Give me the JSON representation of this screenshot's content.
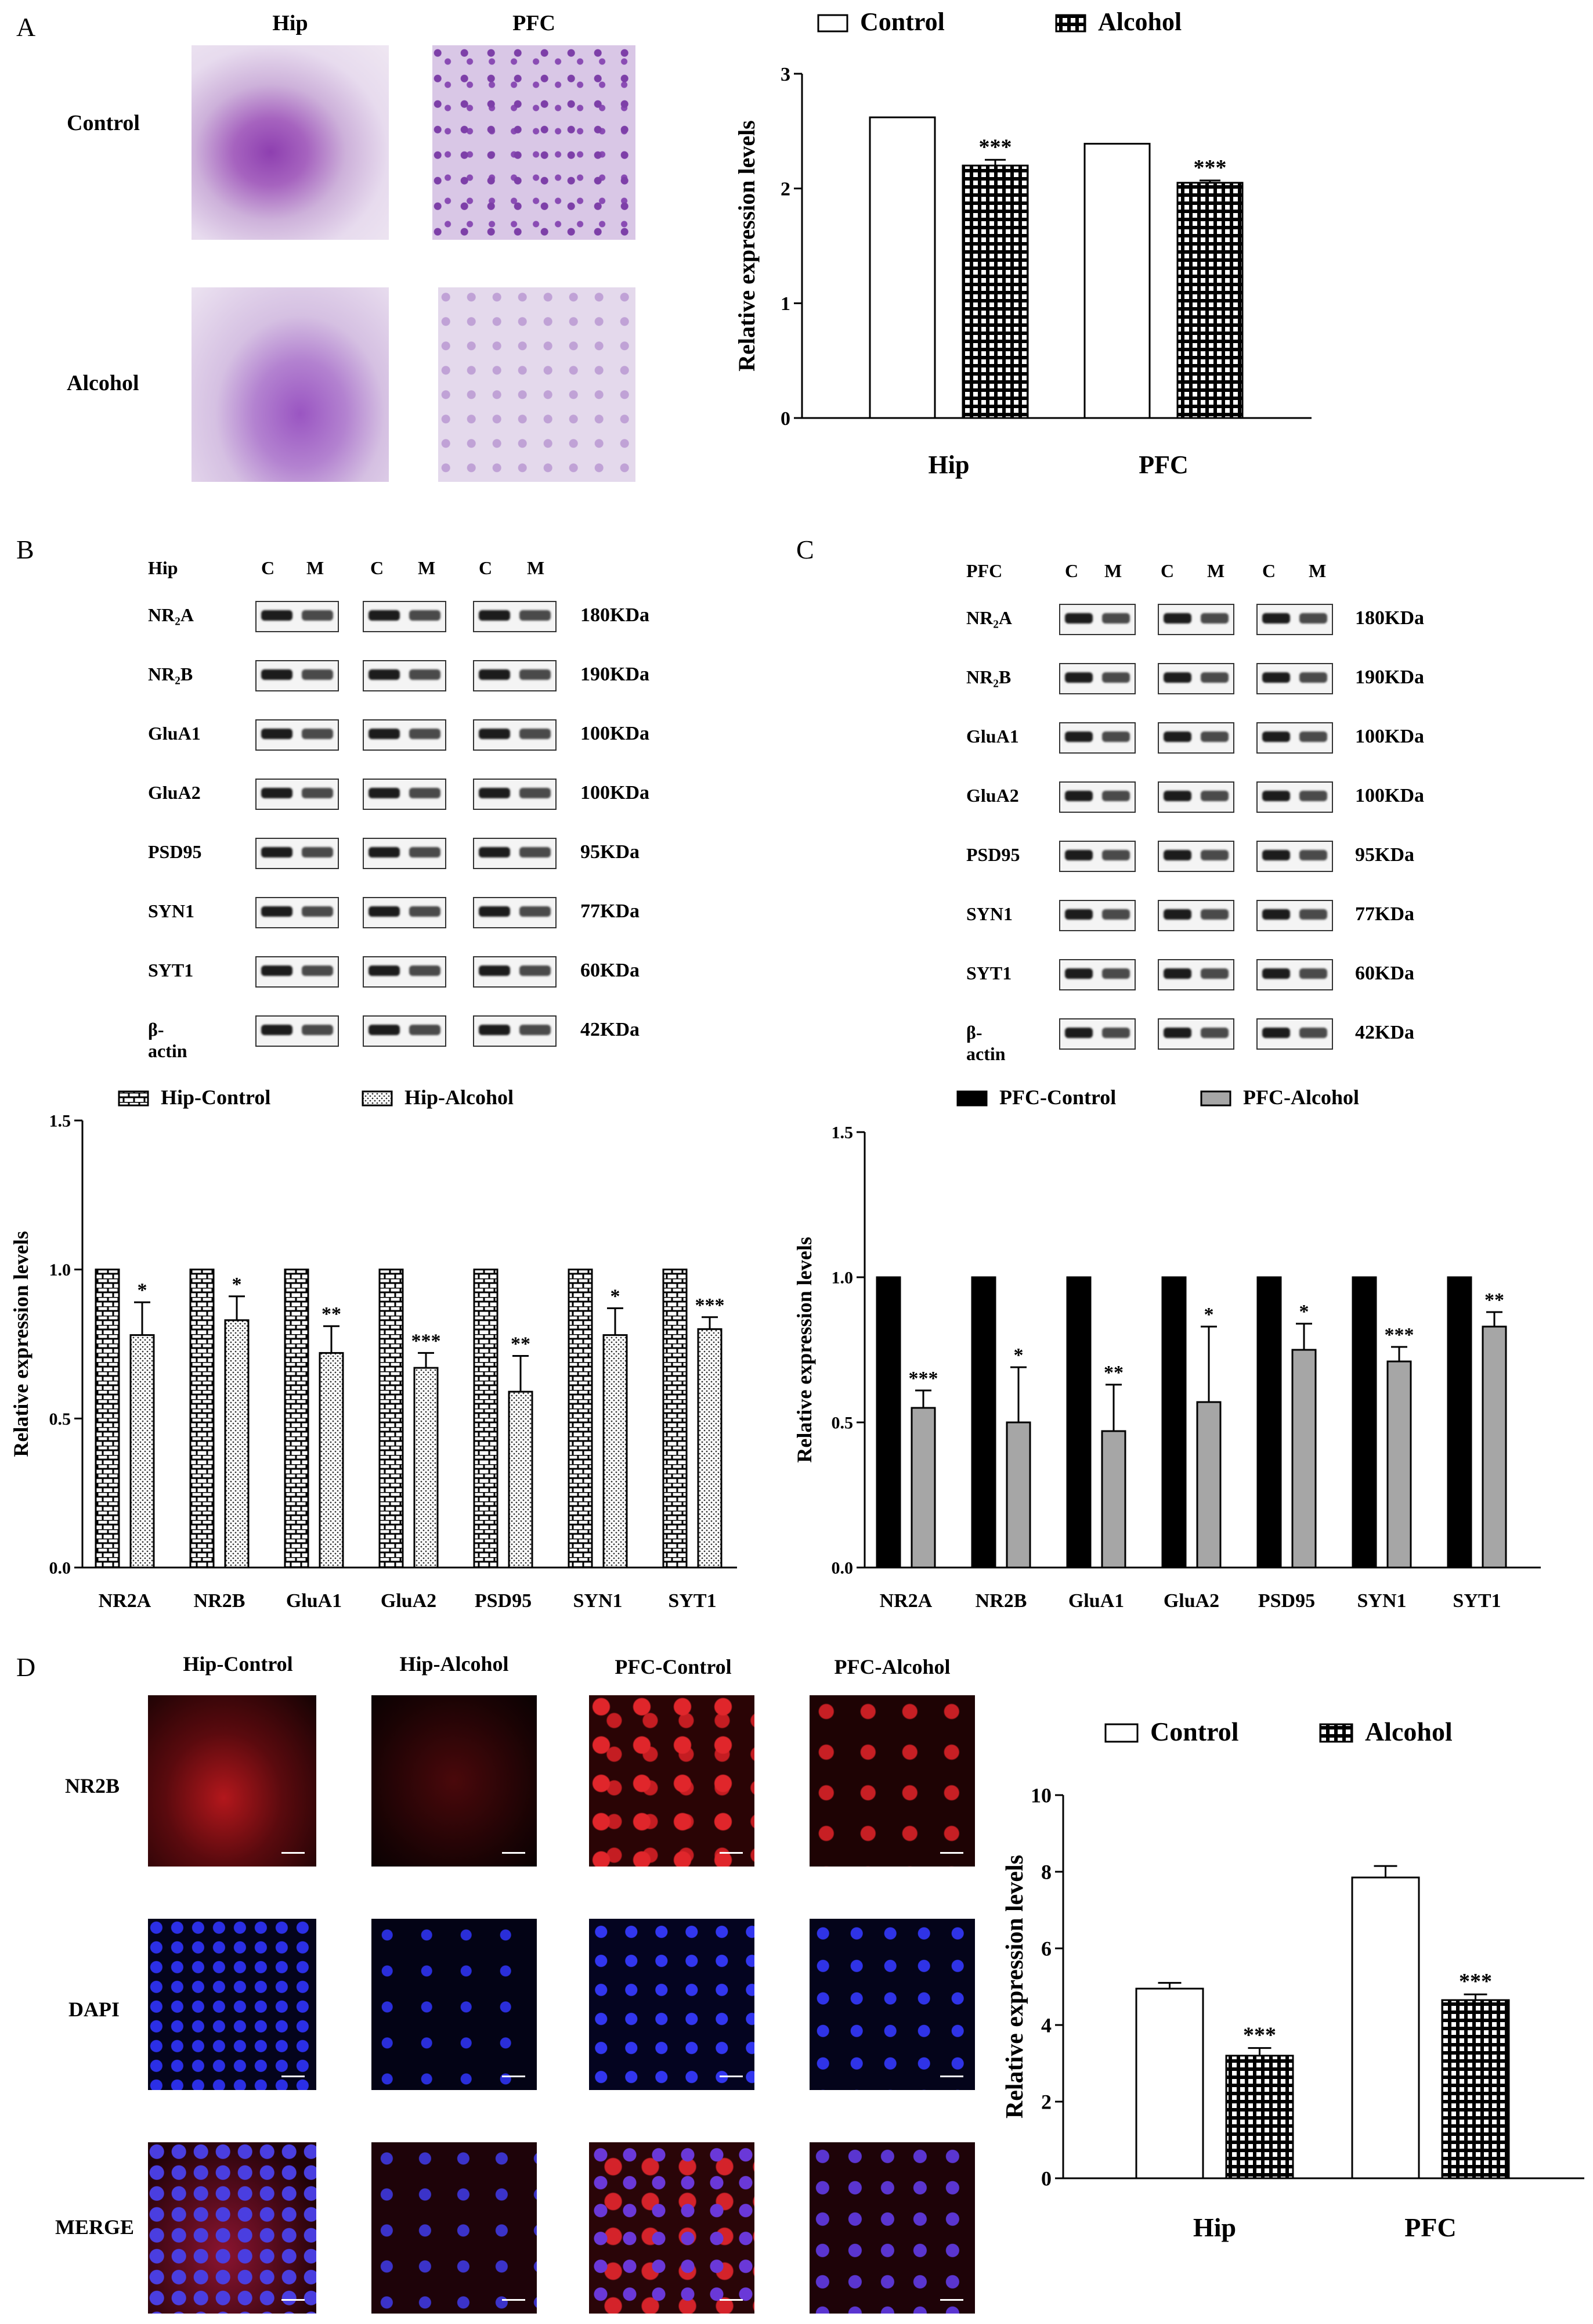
{
  "panels": {
    "a": "A",
    "b": "B",
    "c": "C",
    "d": "D"
  },
  "panel_a": {
    "col_headers": [
      "Hip",
      "PFC"
    ],
    "row_labels": [
      "Control",
      "Alcohol"
    ]
  },
  "blots_b": {
    "region": "Hip",
    "lane_labels": [
      "C",
      "M",
      "C",
      "M",
      "C",
      "M"
    ],
    "rows": [
      {
        "protein": "NR₂A",
        "kda": "180KDa"
      },
      {
        "protein": "NR₂B",
        "kda": "190KDa"
      },
      {
        "protein": "GluA1",
        "kda": "100KDa"
      },
      {
        "protein": "GluA2",
        "kda": "100KDa"
      },
      {
        "protein": "PSD95",
        "kda": "95KDa"
      },
      {
        "protein": "SYN1",
        "kda": "77KDa"
      },
      {
        "protein": "SYT1",
        "kda": "60KDa"
      },
      {
        "protein": "β-actin",
        "kda": "42KDa"
      }
    ]
  },
  "blots_c": {
    "region": "PFC",
    "lane_labels": [
      "C",
      "M",
      "C",
      "M",
      "C",
      "M"
    ],
    "rows": [
      {
        "protein": "NR₂A",
        "kda": "180KDa"
      },
      {
        "protein": "NR₂B",
        "kda": "190KDa"
      },
      {
        "protein": "GluA1",
        "kda": "100KDa"
      },
      {
        "protein": "GluA2",
        "kda": "100KDa"
      },
      {
        "protein": "PSD95",
        "kda": "95KDa"
      },
      {
        "protein": "SYN1",
        "kda": "77KDa"
      },
      {
        "protein": "SYT1",
        "kda": "60KDa"
      },
      {
        "protein": "β-actin",
        "kda": "42KDa"
      }
    ]
  },
  "panel_d": {
    "col_headers": [
      "Hip-Control",
      "Hip-Alcohol",
      "PFC-Control",
      "PFC-Alcohol"
    ],
    "row_labels": [
      "NR2B",
      "DAPI",
      "MERGE"
    ]
  },
  "chart_data": [
    {
      "id": "chartA",
      "type": "bar",
      "categories": [
        "Hip",
        "PFC"
      ],
      "series": [
        {
          "name": "Control",
          "values": [
            2.62,
            2.39
          ],
          "errors": [
            0.0,
            0.0
          ],
          "pattern": "open"
        },
        {
          "name": "Alcohol",
          "values": [
            2.2,
            2.05
          ],
          "errors": [
            0.05,
            0.02
          ],
          "pattern": "grid"
        }
      ],
      "annotations": [
        [
          "",
          "***"
        ],
        [
          "",
          "***"
        ]
      ],
      "ylabel": "Relative expression levels",
      "ylim": [
        0,
        3
      ],
      "yticks": [
        "0",
        "1",
        "2",
        "3"
      ],
      "legend": "top"
    },
    {
      "id": "chartB",
      "type": "bar",
      "categories": [
        "NR2A",
        "NR2B",
        "GluA1",
        "GluA2",
        "PSD95",
        "SYN1",
        "SYT1"
      ],
      "series": [
        {
          "name": "Hip-Control",
          "values": [
            1.0,
            1.0,
            1.0,
            1.0,
            1.0,
            1.0,
            1.0
          ],
          "errors": [
            0,
            0,
            0,
            0,
            0,
            0,
            0
          ],
          "pattern": "brick"
        },
        {
          "name": "Hip-Alcohol",
          "values": [
            0.78,
            0.83,
            0.72,
            0.67,
            0.59,
            0.78,
            0.8
          ],
          "errors": [
            0.11,
            0.08,
            0.09,
            0.05,
            0.12,
            0.09,
            0.04
          ],
          "pattern": "dots"
        }
      ],
      "annotations": [
        "*",
        "*",
        "**",
        "***",
        "**",
        "*",
        "***"
      ],
      "ylabel": "Relative expression levels",
      "ylim": [
        0,
        1.5
      ],
      "yticks": [
        "0.0",
        "0.5",
        "1.0",
        "1.5"
      ],
      "legend": "top"
    },
    {
      "id": "chartC",
      "type": "bar",
      "categories": [
        "NR2A",
        "NR2B",
        "GluA1",
        "GluA2",
        "PSD95",
        "SYN1",
        "SYT1"
      ],
      "series": [
        {
          "name": "PFC-Control",
          "values": [
            1.0,
            1.0,
            1.0,
            1.0,
            1.0,
            1.0,
            1.0
          ],
          "errors": [
            0,
            0,
            0,
            0,
            0,
            0,
            0
          ],
          "color": "#000000"
        },
        {
          "name": "PFC-Alcohol",
          "values": [
            0.55,
            0.5,
            0.47,
            0.57,
            0.75,
            0.71,
            0.83
          ],
          "errors": [
            0.06,
            0.19,
            0.16,
            0.26,
            0.09,
            0.05,
            0.05
          ],
          "color": "#a6a6a6"
        }
      ],
      "annotations": [
        "***",
        "*",
        "**",
        "*",
        "*",
        "***",
        "**"
      ],
      "ylabel": "Relative expression levels",
      "ylim": [
        0,
        1.5
      ],
      "yticks": [
        "0.0",
        "0.5",
        "1.0",
        "1.5"
      ],
      "legend": "top"
    },
    {
      "id": "chartD",
      "type": "bar",
      "categories": [
        "Hip",
        "PFC"
      ],
      "series": [
        {
          "name": "Control",
          "values": [
            4.95,
            7.85
          ],
          "errors": [
            0.15,
            0.3
          ],
          "pattern": "open"
        },
        {
          "name": "Alcohol",
          "values": [
            3.2,
            4.65
          ],
          "errors": [
            0.2,
            0.15
          ],
          "pattern": "grid"
        }
      ],
      "annotations": [
        "***",
        "***"
      ],
      "ylabel": "Relative expression levels",
      "ylim": [
        0,
        10
      ],
      "yticks": [
        "0",
        "2",
        "4",
        "6",
        "8",
        "10"
      ],
      "legend": "top"
    }
  ]
}
